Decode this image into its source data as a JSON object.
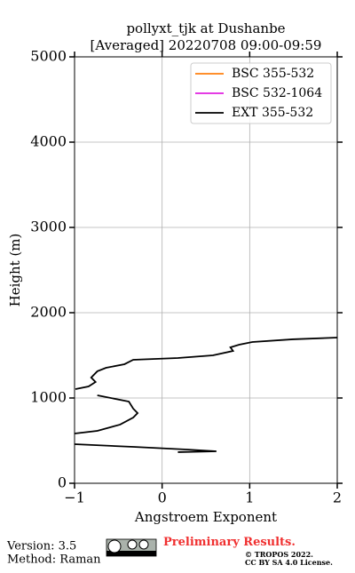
{
  "chart_data": {
    "type": "line",
    "title": "pollyxt_tjk at Dushanbe",
    "subtitle": "[Averaged] 20220708 09:00-09:59",
    "x_label": "Angstroem Exponent",
    "y_label": "Height (m)",
    "heights": [
      1708,
      1688,
      1656,
      1625,
      1594,
      1552,
      1500,
      1469,
      1448,
      1396,
      1354,
      1313,
      1240,
      1188,
      1135,
      1104,
      1070,
      1031,
      958,
      875,
      823,
      771,
      688,
      615,
      583,
      520,
      458,
      427,
      396,
      375,
      365
    ],
    "series": [
      {
        "name": "BSC 355-532",
        "color": "#ff7f0e",
        "values": [
          null,
          null,
          null,
          null,
          null,
          null,
          null,
          null,
          null,
          null,
          null,
          null,
          null,
          null,
          null,
          null,
          null,
          null,
          null,
          null,
          null,
          null,
          null,
          null,
          null,
          null,
          null,
          null,
          null,
          null,
          null
        ]
      },
      {
        "name": "BSC 532-1064",
        "color": "#e020e0",
        "values": [
          null,
          null,
          null,
          null,
          null,
          null,
          null,
          null,
          null,
          null,
          null,
          null,
          null,
          null,
          null,
          null,
          null,
          null,
          null,
          null,
          null,
          null,
          null,
          null,
          null,
          null,
          null,
          null,
          null,
          null,
          null
        ]
      },
      {
        "name": "EXT 355-532",
        "color": "#000000",
        "values": [
          2.0,
          1.49,
          1.03,
          0.88,
          0.78,
          0.81,
          0.58,
          0.18,
          -0.33,
          -0.43,
          -0.64,
          -0.74,
          -0.81,
          -0.76,
          -0.84,
          -0.99,
          null,
          -0.74,
          -0.38,
          -0.33,
          -0.28,
          -0.33,
          -0.48,
          -0.74,
          -1.0,
          null,
          -1.0,
          -0.33,
          0.28,
          0.62,
          0.18
        ]
      }
    ],
    "xlim": [
      -1,
      2
    ],
    "ylim": [
      0,
      5000
    ],
    "xticks": [
      {
        "value": -1,
        "label": "−1"
      },
      0,
      1,
      2
    ],
    "yticks": [
      0,
      1000,
      2000,
      3000,
      4000,
      5000
    ],
    "grid": true,
    "legend": "upper right"
  },
  "footer": {
    "version": "Version: 3.5",
    "method": "Method: Raman",
    "status": "Preliminary Results.",
    "license_1": "© TROPOS 2022.",
    "license_2": "CC BY SA 4.0 License."
  }
}
